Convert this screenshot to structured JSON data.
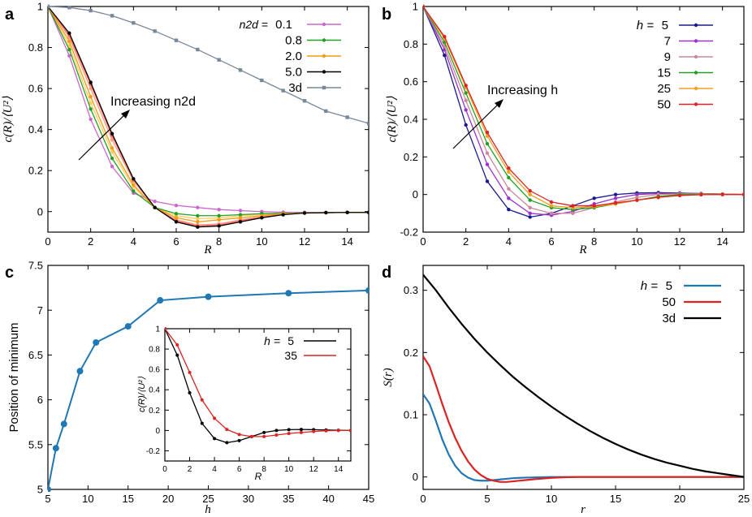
{
  "chart_data": [
    {
      "panel": "a",
      "type": "line",
      "xlabel": "R",
      "ylabel": "c(R)/⟨U²⟩",
      "xlim": [
        0,
        15
      ],
      "ylim": [
        -0.1,
        1
      ],
      "xticks": [
        "0",
        "2",
        "4",
        "6",
        "8",
        "10",
        "12",
        "14"
      ],
      "yticks": [
        "0",
        "0.2",
        "0.4",
        "0.6",
        "0.8",
        "1"
      ],
      "annotation": "Increasing n2d",
      "legend_position": "top-right",
      "legend_prefix": "n2d =",
      "series": [
        {
          "name": "0.1",
          "color": "#cc66cc",
          "x": [
            0,
            1,
            2,
            3,
            4,
            5,
            6,
            7,
            8,
            9,
            10,
            11,
            12,
            13,
            14,
            15
          ],
          "values": [
            1,
            0.76,
            0.45,
            0.22,
            0.09,
            0.05,
            0.03,
            0.02,
            0.01,
            0.005,
            0,
            -0.003,
            -0.004,
            -0.005,
            -0.004,
            -0.004
          ]
        },
        {
          "name": "0.8",
          "color": "#22a022",
          "x": [
            0,
            1,
            2,
            3,
            4,
            5,
            6,
            7,
            8,
            9,
            10,
            11,
            12,
            13,
            14,
            15
          ],
          "values": [
            1,
            0.79,
            0.5,
            0.26,
            0.1,
            0.02,
            -0.01,
            -0.02,
            -0.02,
            -0.015,
            -0.01,
            -0.008,
            -0.006,
            -0.005,
            -0.004,
            -0.004
          ]
        },
        {
          "name": "2.0",
          "color": "#f39c12",
          "x": [
            0,
            1,
            2,
            3,
            4,
            5,
            6,
            7,
            8,
            9,
            10,
            11,
            12,
            13,
            14,
            15
          ],
          "values": [
            1,
            0.83,
            0.56,
            0.31,
            0.13,
            0.02,
            -0.03,
            -0.05,
            -0.04,
            -0.03,
            -0.02,
            -0.01,
            -0.007,
            -0.005,
            -0.004,
            -0.004
          ]
        },
        {
          "name": "5.0",
          "color": "#000000",
          "x": [
            0,
            1,
            2,
            3,
            4,
            5,
            6,
            7,
            8,
            9,
            10,
            11,
            12,
            13,
            14,
            15
          ],
          "values": [
            1,
            0.87,
            0.63,
            0.38,
            0.16,
            0.02,
            -0.05,
            -0.075,
            -0.07,
            -0.05,
            -0.03,
            -0.015,
            -0.007,
            -0.005,
            -0.004,
            -0.004
          ]
        },
        {
          "name": "3d",
          "color": "#778899",
          "x": [
            0,
            1,
            2,
            3,
            4,
            5,
            6,
            7,
            8,
            9,
            10,
            11,
            12,
            13,
            14,
            15
          ],
          "values": [
            1,
            0.995,
            0.98,
            0.955,
            0.92,
            0.88,
            0.835,
            0.79,
            0.74,
            0.69,
            0.64,
            0.59,
            0.54,
            0.49,
            0.46,
            0.43
          ]
        }
      ],
      "extra_curves": [
        {
          "color": "#ff9980",
          "values": [
            1,
            0.85,
            0.6,
            0.35,
            0.15,
            0.02,
            -0.04,
            -0.065,
            -0.06,
            -0.04,
            -0.025,
            -0.012,
            -0.007,
            -0.005,
            -0.004,
            -0.004
          ]
        },
        {
          "color": "#ffcc66",
          "values": [
            1,
            0.81,
            0.53,
            0.29,
            0.12,
            0.02,
            -0.02,
            -0.035,
            -0.03,
            -0.02,
            -0.015,
            -0.01,
            -0.006,
            -0.005,
            -0.004,
            -0.004
          ]
        },
        {
          "color": "#ff6666",
          "values": [
            1,
            0.86,
            0.62,
            0.37,
            0.155,
            0.02,
            -0.045,
            -0.07,
            -0.065,
            -0.045,
            -0.028,
            -0.014,
            -0.007,
            -0.005,
            -0.004,
            -0.004
          ]
        }
      ]
    },
    {
      "panel": "b",
      "type": "line",
      "xlabel": "R",
      "ylabel": "c(R)/⟨U²⟩",
      "xlim": [
        0,
        15
      ],
      "ylim": [
        -0.2,
        1
      ],
      "xticks": [
        "0",
        "2",
        "4",
        "6",
        "8",
        "10",
        "12",
        "14"
      ],
      "yticks": [
        "-0.2",
        "0",
        "0.2",
        "0.4",
        "0.6",
        "0.8",
        "1"
      ],
      "annotation": "Increasing h",
      "legend_position": "top-right",
      "legend_prefix": "h =",
      "series": [
        {
          "name": "5",
          "color": "#1a1a8c",
          "x": [
            0,
            1,
            2,
            3,
            4,
            5,
            6,
            7,
            8,
            9,
            10,
            11,
            12,
            13,
            14,
            15
          ],
          "values": [
            1,
            0.74,
            0.37,
            0.07,
            -0.08,
            -0.12,
            -0.1,
            -0.06,
            -0.02,
            0,
            0.008,
            0.01,
            0.008,
            0.005,
            0.002,
            0
          ]
        },
        {
          "name": "7",
          "color": "#9933cc",
          "x": [
            0,
            1,
            2,
            3,
            4,
            5,
            6,
            7,
            8,
            9,
            10,
            11,
            12,
            13,
            14,
            15
          ],
          "values": [
            1,
            0.77,
            0.45,
            0.16,
            -0.02,
            -0.1,
            -0.11,
            -0.09,
            -0.05,
            -0.02,
            0,
            0.005,
            0.006,
            0.005,
            0.002,
            0
          ]
        },
        {
          "name": "9",
          "color": "#cc8899",
          "x": [
            0,
            1,
            2,
            3,
            4,
            5,
            6,
            7,
            8,
            9,
            10,
            11,
            12,
            13,
            14,
            15
          ],
          "values": [
            1,
            0.79,
            0.5,
            0.22,
            0.03,
            -0.07,
            -0.1,
            -0.1,
            -0.07,
            -0.04,
            -0.015,
            0,
            0.004,
            0.004,
            0.002,
            0
          ]
        },
        {
          "name": "15",
          "color": "#22a022",
          "x": [
            0,
            1,
            2,
            3,
            4,
            5,
            6,
            7,
            8,
            9,
            10,
            11,
            12,
            13,
            14,
            15
          ],
          "values": [
            1,
            0.81,
            0.54,
            0.27,
            0.09,
            -0.03,
            -0.07,
            -0.08,
            -0.07,
            -0.05,
            -0.03,
            -0.01,
            0,
            0.002,
            0.001,
            0
          ]
        },
        {
          "name": "25",
          "color": "#f0a020",
          "x": [
            0,
            1,
            2,
            3,
            4,
            5,
            6,
            7,
            8,
            9,
            10,
            11,
            12,
            13,
            14,
            15
          ],
          "values": [
            1,
            0.83,
            0.57,
            0.31,
            0.12,
            0,
            -0.06,
            -0.07,
            -0.065,
            -0.05,
            -0.03,
            -0.015,
            -0.005,
            0,
            0,
            0
          ]
        },
        {
          "name": "50",
          "color": "#dd2222",
          "x": [
            0,
            1,
            2,
            3,
            4,
            5,
            6,
            7,
            8,
            9,
            10,
            11,
            12,
            13,
            14,
            15
          ],
          "values": [
            1,
            0.84,
            0.58,
            0.33,
            0.14,
            0.02,
            -0.04,
            -0.06,
            -0.06,
            -0.045,
            -0.03,
            -0.015,
            -0.005,
            -0.001,
            0,
            0
          ]
        }
      ]
    },
    {
      "panel": "c",
      "type": "line",
      "xlabel": "h",
      "ylabel": "Position of minimum",
      "xlim": [
        5,
        45
      ],
      "ylim": [
        5,
        7.5
      ],
      "xticks": [
        "5",
        "10",
        "15",
        "20",
        "25",
        "30",
        "35",
        "40",
        "45"
      ],
      "yticks": [
        "5",
        "5.5",
        "6",
        "6.5",
        "7",
        "7.5"
      ],
      "series": [
        {
          "name": "minimum",
          "color": "#1f77b4",
          "x": [
            5,
            6,
            7,
            9,
            11,
            15,
            19,
            25,
            35,
            45
          ],
          "values": [
            5.0,
            5.46,
            5.73,
            6.32,
            6.64,
            6.82,
            7.11,
            7.15,
            7.19,
            7.22
          ]
        }
      ],
      "inset": {
        "type": "line",
        "xlabel": "R",
        "ylabel": "c(R)/⟨U²⟩",
        "xlim": [
          0,
          15
        ],
        "ylim": [
          -0.3,
          1
        ],
        "xticks": [
          "0",
          "2",
          "4",
          "6",
          "8",
          "10",
          "12",
          "14"
        ],
        "yticks": [
          "-0.2",
          "0",
          "0.2",
          "0.4",
          "0.6",
          "0.8",
          "1"
        ],
        "legend_prefix": "h =",
        "series": [
          {
            "name": "5",
            "color": "#000000",
            "x": [
              0,
              1,
              2,
              3,
              4,
              5,
              6,
              7,
              8,
              9,
              10,
              11,
              12,
              13,
              14,
              15
            ],
            "values": [
              1,
              0.74,
              0.37,
              0.07,
              -0.08,
              -0.12,
              -0.1,
              -0.06,
              -0.02,
              0,
              0.008,
              0.01,
              0.008,
              0.005,
              0.002,
              0
            ]
          },
          {
            "name": "35",
            "color": "#dd2222",
            "x": [
              0,
              1,
              2,
              3,
              4,
              5,
              6,
              7,
              8,
              9,
              10,
              11,
              12,
              13,
              14,
              15
            ],
            "values": [
              1,
              0.84,
              0.57,
              0.3,
              0.12,
              0.01,
              -0.04,
              -0.06,
              -0.06,
              -0.045,
              -0.03,
              -0.02,
              -0.01,
              -0.003,
              0,
              0
            ]
          }
        ]
      }
    },
    {
      "panel": "d",
      "type": "line",
      "xlabel": "r",
      "ylabel": "S(r)",
      "xlim": [
        0,
        25
      ],
      "ylim": [
        -0.02,
        0.34
      ],
      "xticks": [
        "0",
        "5",
        "10",
        "15",
        "20",
        "25"
      ],
      "yticks": [
        "0",
        "0.1",
        "0.2",
        "0.3"
      ],
      "legend_position": "top-right",
      "legend_prefix": "h =",
      "series": [
        {
          "name": "5",
          "color": "#1f77b4",
          "x": [
            0,
            0.5,
            1,
            1.5,
            2,
            2.5,
            3,
            3.5,
            4,
            4.5,
            5,
            5.5,
            6,
            6.5,
            7,
            8,
            9,
            10,
            11,
            12,
            14,
            16,
            20,
            25
          ],
          "values": [
            0.133,
            0.118,
            0.09,
            0.06,
            0.036,
            0.018,
            0.006,
            -0.001,
            -0.005,
            -0.006,
            -0.006,
            -0.005,
            -0.004,
            -0.003,
            -0.002,
            -0.001,
            -0.0005,
            0,
            0,
            0,
            0,
            0,
            0,
            0
          ]
        },
        {
          "name": "50",
          "color": "#dd2222",
          "x": [
            0,
            0.5,
            1,
            1.5,
            2,
            2.5,
            3,
            3.5,
            4,
            4.5,
            5,
            5.5,
            6,
            6.5,
            7,
            8,
            9,
            10,
            11,
            12,
            14,
            16,
            20,
            25
          ],
          "values": [
            0.194,
            0.178,
            0.148,
            0.117,
            0.088,
            0.063,
            0.042,
            0.025,
            0.012,
            0.003,
            -0.003,
            -0.006,
            -0.008,
            -0.008,
            -0.007,
            -0.005,
            -0.003,
            -0.0015,
            -0.0005,
            0,
            0,
            0,
            0,
            0
          ]
        },
        {
          "name": "3d",
          "color": "#000000",
          "x": [
            0,
            1,
            2,
            3,
            4,
            5,
            6,
            7,
            8,
            9,
            10,
            11,
            12,
            13,
            14,
            15,
            16,
            17,
            18,
            19,
            20,
            21,
            22,
            23,
            24,
            25
          ],
          "values": [
            0.325,
            0.3,
            0.272,
            0.246,
            0.222,
            0.2,
            0.18,
            0.161,
            0.144,
            0.128,
            0.113,
            0.099,
            0.086,
            0.074,
            0.063,
            0.053,
            0.044,
            0.036,
            0.029,
            0.023,
            0.018,
            0.013,
            0.009,
            0.006,
            0.003,
            0
          ]
        }
      ]
    }
  ]
}
